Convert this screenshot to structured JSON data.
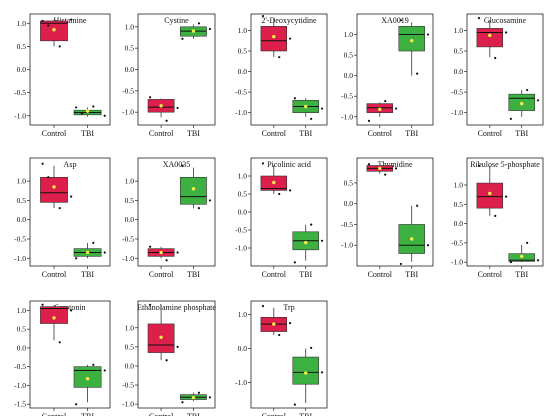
{
  "chart_data": {
    "type": "box",
    "colors": {
      "control": "#dc1f4b",
      "tbi": "#3cb041",
      "mean_marker": "#f2ee4a",
      "median_line": "#111111",
      "point": "#111111"
    },
    "panels": [
      {
        "title": "Histamine",
        "categories": [
          "Control",
          "TBI"
        ],
        "ylim": [
          -1.2,
          1.2
        ],
        "yticks": [
          "1.0",
          "0.5",
          "0.0",
          "-0.5",
          "-1.0"
        ],
        "ytick_values": [
          1.0,
          0.5,
          0.0,
          -0.5,
          -1.0
        ],
        "boxes": [
          {
            "q1": 0.62,
            "median": 1.0,
            "q3": 1.05,
            "whislo": 0.5,
            "whishi": 1.08,
            "mean": 0.86,
            "points": [
              0.5,
              1.05,
              1.08,
              0.95
            ]
          },
          {
            "q1": -0.98,
            "median": -0.93,
            "q3": -0.88,
            "whislo": -1.02,
            "whishi": -0.82,
            "mean": -0.9,
            "points": [
              -0.8,
              -0.82,
              -1.0,
              -0.95
            ]
          }
        ]
      },
      {
        "title": "Cystine",
        "categories": [
          "Control",
          "TBI"
        ],
        "ylim": [
          -1.3,
          1.3
        ],
        "yticks": [
          "1.0",
          "0.5",
          "0.0",
          "-0.5",
          "-1.0"
        ],
        "ytick_values": [
          1.0,
          0.5,
          0.0,
          -0.5,
          -1.0
        ],
        "boxes": [
          {
            "q1": -1.0,
            "median": -0.88,
            "q3": -0.7,
            "whislo": -1.12,
            "whishi": -0.68,
            "mean": -0.85,
            "points": [
              -1.2,
              -0.65,
              -0.9
            ]
          },
          {
            "q1": 0.78,
            "median": 0.9,
            "q3": 1.0,
            "whislo": 0.72,
            "whishi": 1.05,
            "mean": 0.9,
            "points": [
              1.08,
              0.72,
              0.95
            ]
          }
        ]
      },
      {
        "title": "2'-Deoxycytidine",
        "categories": [
          "Control",
          "TBI"
        ],
        "ylim": [
          -1.3,
          1.4
        ],
        "yticks": [
          "1.0",
          "0.5",
          "0.0",
          "-0.5",
          "-1.0"
        ],
        "ytick_values": [
          1.0,
          0.5,
          0.0,
          -0.5,
          -1.0
        ],
        "boxes": [
          {
            "q1": 0.5,
            "median": 0.75,
            "q3": 1.1,
            "whislo": 0.35,
            "whishi": 1.3,
            "mean": 0.85,
            "points": [
              0.35,
              1.35,
              0.8
            ]
          },
          {
            "q1": -1.0,
            "median": -0.85,
            "q3": -0.7,
            "whislo": -1.1,
            "whishi": -0.65,
            "mean": -0.85,
            "points": [
              -1.15,
              -0.65,
              -0.9
            ]
          }
        ]
      },
      {
        "title": "XA0019",
        "categories": [
          "Control",
          "TBI"
        ],
        "ylim": [
          -1.2,
          1.5
        ],
        "yticks": [
          "1.0",
          "0.5",
          "0.0",
          "-0.5",
          "-1.0"
        ],
        "ytick_values": [
          1.0,
          0.5,
          0.0,
          -0.5,
          -1.0
        ],
        "boxes": [
          {
            "q1": -0.9,
            "median": -0.78,
            "q3": -0.68,
            "whislo": -1.0,
            "whishi": -0.65,
            "mean": -0.82,
            "points": [
              -0.62,
              -1.1,
              -0.8
            ]
          },
          {
            "q1": 0.6,
            "median": 1.0,
            "q3": 1.2,
            "whislo": 0.0,
            "whishi": 1.3,
            "mean": 0.85,
            "points": [
              0.05,
              1.35,
              1.0
            ]
          }
        ]
      },
      {
        "title": "Glucosamine",
        "categories": [
          "Control",
          "TBI"
        ],
        "ylim": [
          -1.3,
          1.4
        ],
        "yticks": [
          "1.0",
          "0.5",
          "0.0",
          "-0.5",
          "-1.0"
        ],
        "ytick_values": [
          1.0,
          0.5,
          0.0,
          -0.5,
          -1.0
        ],
        "boxes": [
          {
            "q1": 0.6,
            "median": 0.95,
            "q3": 1.05,
            "whislo": 0.35,
            "whishi": 1.25,
            "mean": 0.88,
            "points": [
              0.33,
              1.3,
              0.95
            ]
          },
          {
            "q1": -0.95,
            "median": -0.65,
            "q3": -0.55,
            "whislo": -1.1,
            "whishi": -0.45,
            "mean": -0.78,
            "points": [
              -0.45,
              -1.15,
              -0.7
            ]
          }
        ]
      },
      {
        "title": "Asp",
        "categories": [
          "Control",
          "TBI"
        ],
        "ylim": [
          -1.2,
          1.6
        ],
        "yticks": [
          "1.0",
          "0.5",
          "0.0",
          "-0.5",
          "-1.0"
        ],
        "ytick_values": [
          1.0,
          0.5,
          0.0,
          -0.5,
          -1.0
        ],
        "boxes": [
          {
            "q1": 0.45,
            "median": 0.7,
            "q3": 1.1,
            "whislo": 0.3,
            "whishi": 1.4,
            "mean": 0.85,
            "points": [
              0.3,
              1.45,
              0.6,
              1.1
            ]
          },
          {
            "q1": -0.95,
            "median": -0.85,
            "q3": -0.75,
            "whislo": -1.0,
            "whishi": -0.6,
            "mean": -0.85,
            "points": [
              -0.6,
              -1.0,
              -0.85
            ]
          }
        ]
      },
      {
        "title": "XA0035",
        "categories": [
          "Control",
          "TBI"
        ],
        "ylim": [
          -1.2,
          1.6
        ],
        "yticks": [
          "1.0",
          "0.5",
          "0.0",
          "-0.5",
          "-1.0"
        ],
        "ytick_values": [
          1.0,
          0.5,
          0.0,
          -0.5,
          -1.0
        ],
        "boxes": [
          {
            "q1": -0.95,
            "median": -0.85,
            "q3": -0.75,
            "whislo": -1.0,
            "whishi": -0.7,
            "mean": -0.85,
            "points": [
              -1.05,
              -0.7,
              -0.85
            ]
          },
          {
            "q1": 0.4,
            "median": 0.6,
            "q3": 1.1,
            "whislo": 0.3,
            "whishi": 1.35,
            "mean": 0.8,
            "points": [
              0.3,
              1.4,
              0.5
            ]
          }
        ]
      },
      {
        "title": "Picolinic acid",
        "categories": [
          "Control",
          "TBI"
        ],
        "ylim": [
          -1.5,
          1.5
        ],
        "yticks": [
          "1.0",
          "0.5",
          "0.0",
          "-0.5",
          "-1.0"
        ],
        "ytick_values": [
          1.0,
          0.5,
          0.0,
          -0.5,
          -1.0
        ],
        "boxes": [
          {
            "q1": 0.6,
            "median": 0.65,
            "q3": 1.0,
            "whislo": 0.5,
            "whishi": 1.3,
            "mean": 0.82,
            "points": [
              0.5,
              1.35,
              0.6
            ]
          },
          {
            "q1": -1.05,
            "median": -0.8,
            "q3": -0.55,
            "whislo": -1.35,
            "whishi": -0.35,
            "mean": -0.85,
            "points": [
              -0.35,
              -1.4,
              -0.8
            ]
          }
        ]
      },
      {
        "title": "Thymidine",
        "categories": [
          "Control",
          "TBI"
        ],
        "ylim": [
          -1.5,
          1.1
        ],
        "yticks": [
          "0.5",
          "0.0",
          "-0.5",
          "-1.0"
        ],
        "ytick_values": [
          0.5,
          0.0,
          -0.5,
          -1.0
        ],
        "boxes": [
          {
            "q1": 0.78,
            "median": 0.85,
            "q3": 0.92,
            "whislo": 0.72,
            "whishi": 0.95,
            "mean": 0.85,
            "points": [
              0.7,
              0.95,
              0.85
            ]
          },
          {
            "q1": -1.2,
            "median": -1.0,
            "q3": -0.5,
            "whislo": -1.4,
            "whishi": -0.05,
            "mean": -0.85,
            "points": [
              -0.05,
              -1.45,
              -1.0
            ]
          }
        ]
      },
      {
        "title": "Ribulose 5-phosphate",
        "categories": [
          "Control",
          "TBI"
        ],
        "ylim": [
          -1.1,
          1.7
        ],
        "yticks": [
          "1.0",
          "0.5",
          "0.0",
          "-0.5",
          "-1.0"
        ],
        "ytick_values": [
          1.0,
          0.5,
          0.0,
          -0.5,
          -1.0
        ],
        "boxes": [
          {
            "q1": 0.4,
            "median": 0.7,
            "q3": 1.05,
            "whislo": 0.2,
            "whishi": 1.5,
            "mean": 0.78,
            "points": [
              0.2,
              1.5,
              0.7
            ]
          },
          {
            "q1": -0.98,
            "median": -0.95,
            "q3": -0.78,
            "whislo": -1.0,
            "whishi": -0.55,
            "mean": -0.85,
            "points": [
              -0.5,
              -1.0,
              -0.95
            ]
          }
        ]
      },
      {
        "title": "Serotonin",
        "categories": [
          "Control",
          "TBI"
        ],
        "ylim": [
          -1.6,
          1.25
        ],
        "yticks": [
          "1.0",
          "0.5",
          "0.0",
          "-0.5",
          "-1.0",
          "-1.5"
        ],
        "ytick_values": [
          1.0,
          0.5,
          0.0,
          -0.5,
          -1.0,
          -1.5
        ],
        "boxes": [
          {
            "q1": 0.65,
            "median": 1.05,
            "q3": 1.1,
            "whislo": 0.2,
            "whishi": 1.15,
            "mean": 0.8,
            "points": [
              0.15,
              1.15,
              1.0
            ]
          },
          {
            "q1": -1.05,
            "median": -0.6,
            "q3": -0.5,
            "whislo": -1.45,
            "whishi": -0.45,
            "mean": -0.82,
            "points": [
              -0.45,
              -1.5,
              -0.6
            ]
          }
        ]
      },
      {
        "title": "Ethanolamine phosphate",
        "categories": [
          "Control",
          "TBI"
        ],
        "ylim": [
          -1.1,
          1.7
        ],
        "yticks": [
          "1.0",
          "0.5",
          "0.0",
          "-0.5",
          "-1.0"
        ],
        "ytick_values": [
          1.0,
          0.5,
          0.0,
          -0.5,
          -1.0
        ],
        "boxes": [
          {
            "q1": 0.35,
            "median": 0.55,
            "q3": 1.1,
            "whislo": 0.15,
            "whishi": 1.6,
            "mean": 0.75,
            "points": [
              0.15,
              1.6,
              0.5
            ]
          },
          {
            "q1": -0.88,
            "median": -0.82,
            "q3": -0.75,
            "whislo": -0.92,
            "whishi": -0.7,
            "mean": -0.83,
            "points": [
              -0.7,
              -0.95,
              -0.82
            ]
          }
        ]
      },
      {
        "title": "Trp",
        "categories": [
          "Control",
          "TBI"
        ],
        "ylim": [
          -1.75,
          1.4
        ],
        "yticks": [
          "1.0",
          "0.0",
          "-1.0"
        ],
        "ytick_values": [
          1.0,
          0.0,
          -1.0
        ],
        "boxes": [
          {
            "q1": 0.5,
            "median": 0.72,
            "q3": 0.92,
            "whislo": 0.4,
            "whishi": 1.2,
            "mean": 0.72,
            "points": [
              0.4,
              1.25,
              0.75
            ]
          },
          {
            "q1": -1.05,
            "median": -0.7,
            "q3": -0.25,
            "whislo": -1.6,
            "whishi": 0.0,
            "mean": -0.72,
            "points": [
              0.02,
              -1.65,
              -0.7
            ]
          }
        ]
      }
    ]
  }
}
